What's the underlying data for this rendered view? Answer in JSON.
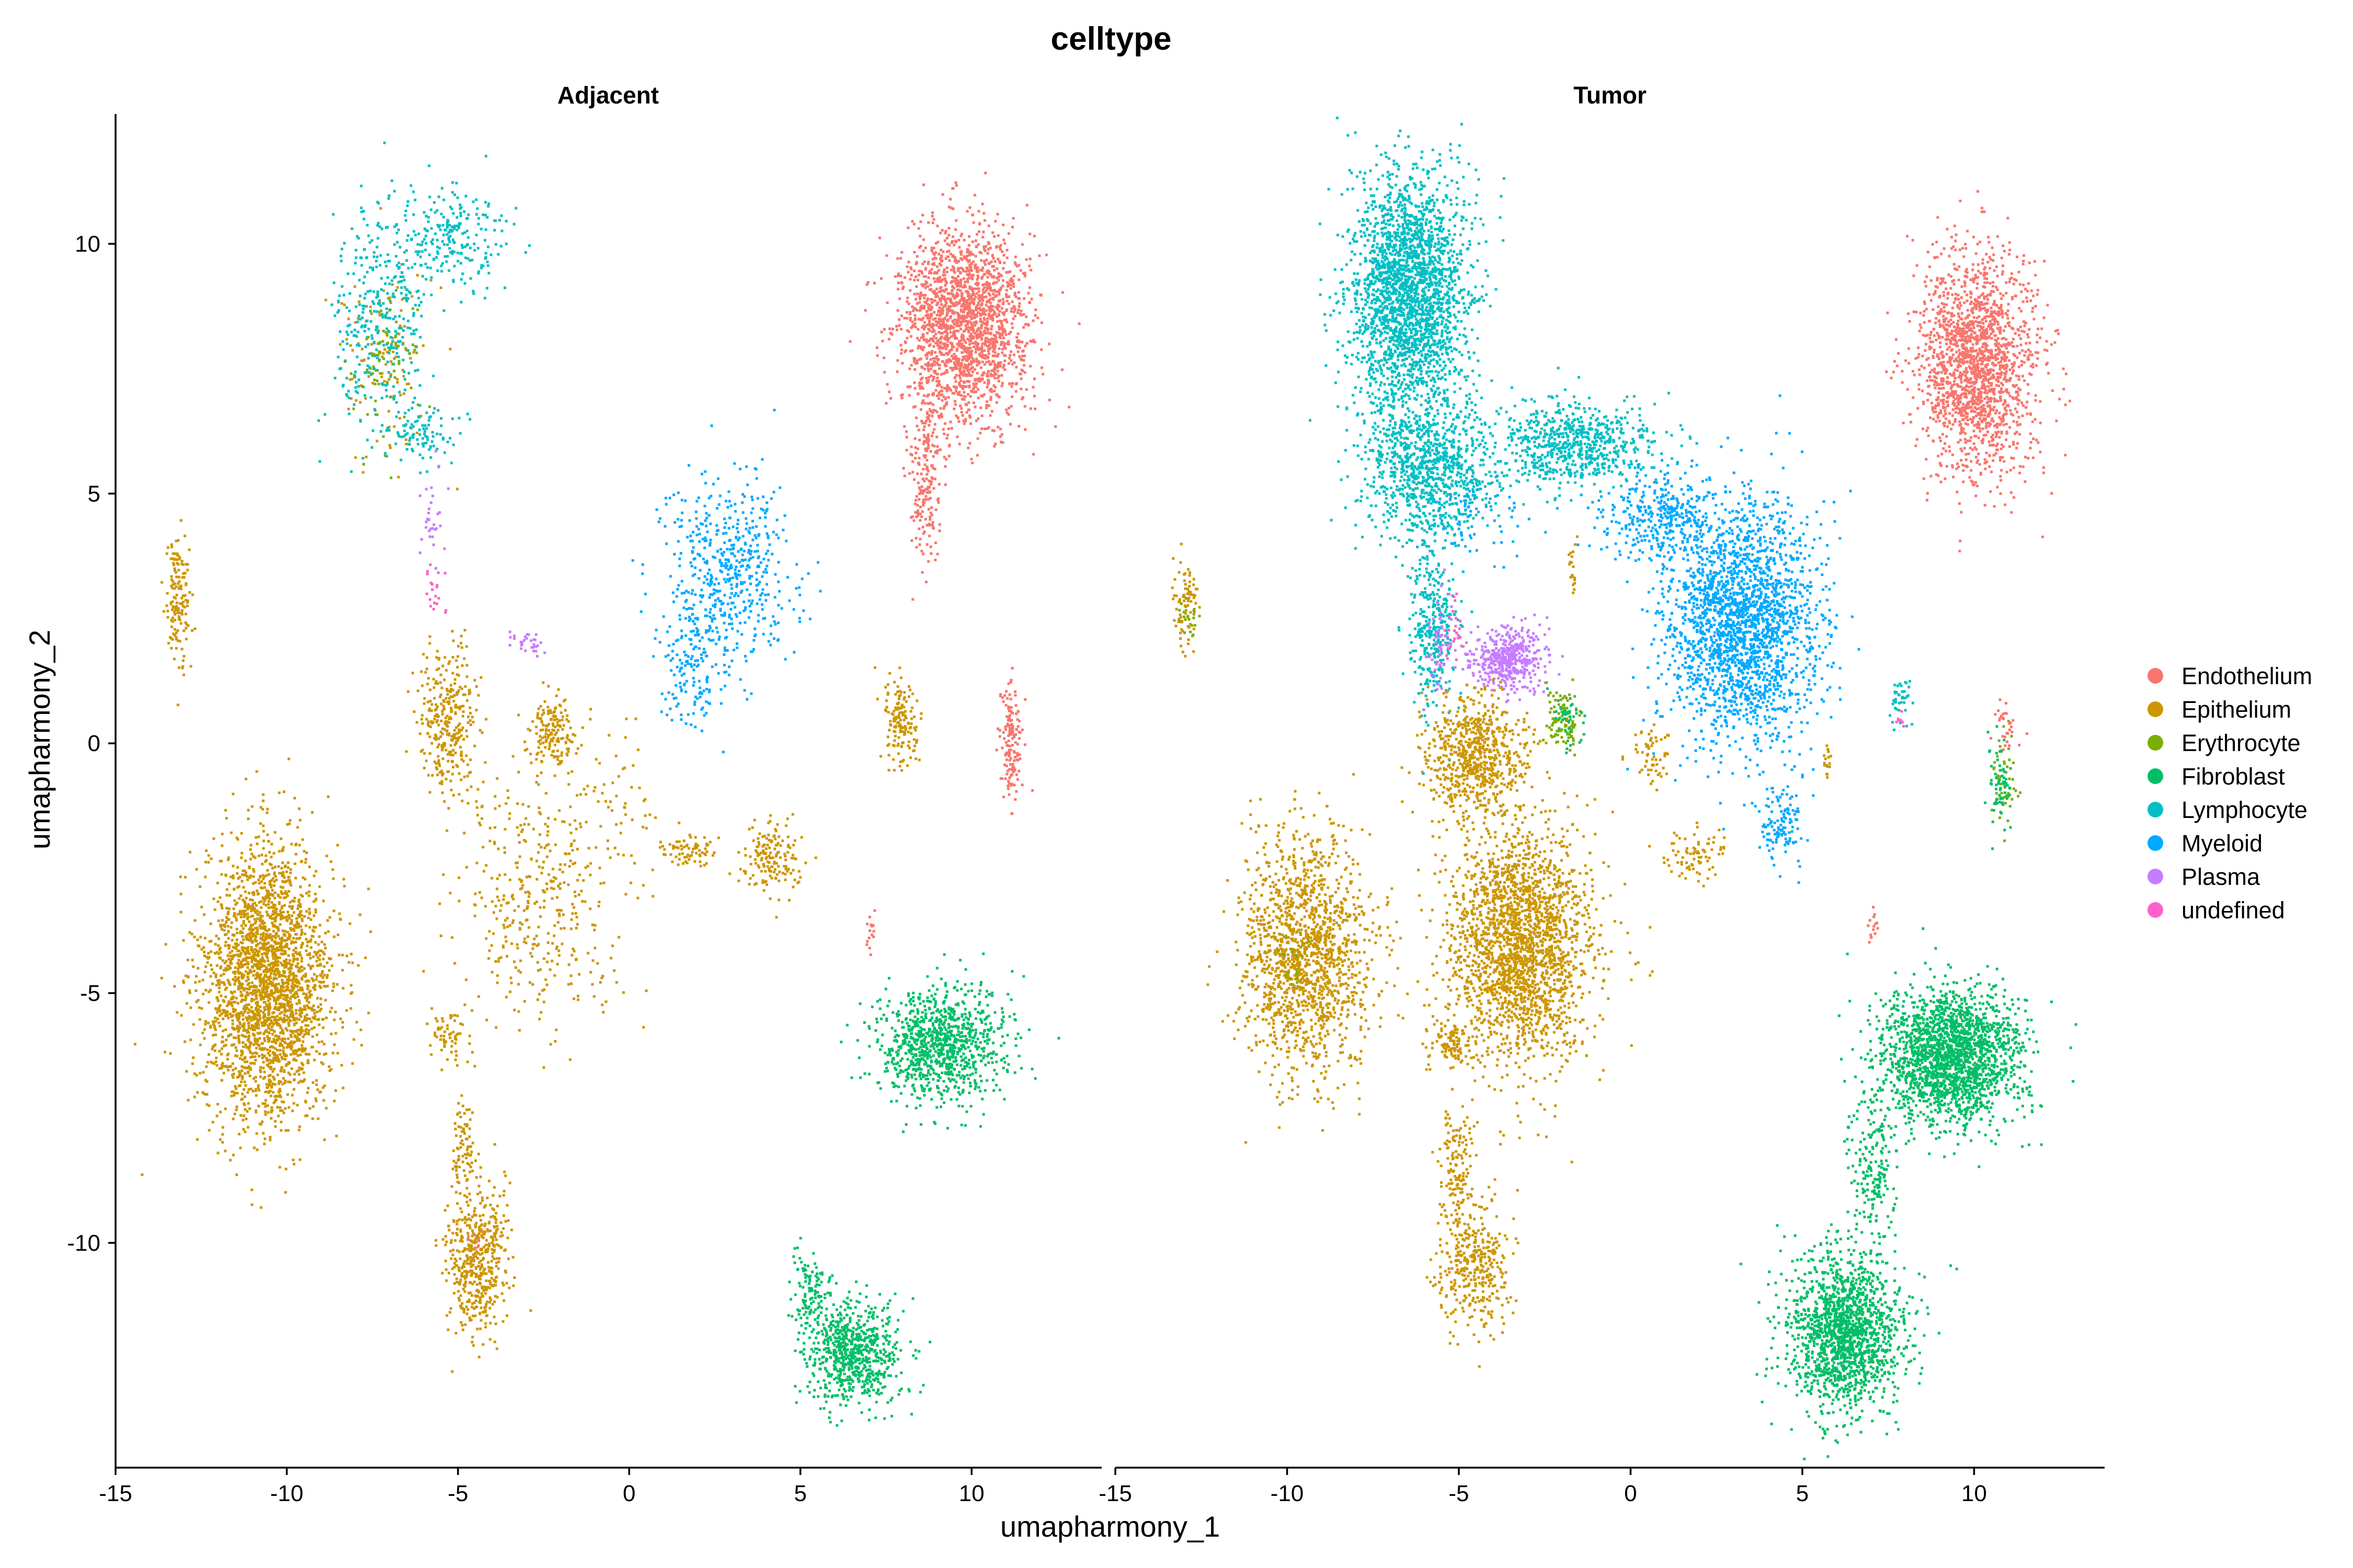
{
  "chart_data": {
    "type": "scatter",
    "title": "celltype",
    "xlabel": "umapharmony_1",
    "ylabel": "umapharmony_2",
    "xlim": [
      -15,
      13.8
    ],
    "ylim": [
      -14.5,
      12.6
    ],
    "x_ticks": [
      -15,
      -10,
      -5,
      0,
      5,
      10
    ],
    "y_ticks": [
      -10,
      -5,
      0,
      5,
      10
    ],
    "x_tick_labels": [
      "-15",
      "-10",
      "-5",
      "0",
      "5",
      "10"
    ],
    "y_tick_labels": [
      "-10",
      "-5",
      "0",
      "5",
      "10"
    ],
    "grid": false,
    "legend_position": "right",
    "categories": [
      "Endothelium",
      "Epithelium",
      "Erythrocyte",
      "Fibroblast",
      "Lymphocyte",
      "Myeloid",
      "Plasma",
      "undefined"
    ],
    "colors": {
      "Endothelium": "#F8766D",
      "Epithelium": "#CD9600",
      "Erythrocyte": "#7CAE00",
      "Fibroblast": "#00BE67",
      "Lymphocyte": "#00BFC4",
      "Myeloid": "#00A9FF",
      "Plasma": "#C77CFF",
      "undefined": "#FF61CC"
    },
    "panels": [
      {
        "name": "Adjacent",
        "clusters": [
          {
            "celltype": "Epithelium",
            "cx": -10.6,
            "cy": -4.8,
            "sx": 1.1,
            "sy": 1.6,
            "n": 2600
          },
          {
            "celltype": "Epithelium",
            "cx": -4.5,
            "cy": -10.3,
            "sx": 0.5,
            "sy": 0.9,
            "n": 500
          },
          {
            "celltype": "Epithelium",
            "cx": -4.9,
            "cy": -8.0,
            "sx": 0.2,
            "sy": 0.5,
            "n": 80
          },
          {
            "celltype": "Epithelium",
            "cx": -5.3,
            "cy": -5.8,
            "sx": 0.3,
            "sy": 0.3,
            "n": 60
          },
          {
            "celltype": "Epithelium",
            "cx": -5.3,
            "cy": 0.5,
            "sx": 0.5,
            "sy": 0.8,
            "n": 320
          },
          {
            "celltype": "Epithelium",
            "cx": -2.3,
            "cy": 0.3,
            "sx": 0.4,
            "sy": 0.4,
            "n": 160
          },
          {
            "celltype": "Epithelium",
            "cx": -2.6,
            "cy": -3.0,
            "sx": 1.5,
            "sy": 1.5,
            "n": 420
          },
          {
            "celltype": "Epithelium",
            "cx": 4.1,
            "cy": -2.3,
            "sx": 0.5,
            "sy": 0.4,
            "n": 160
          },
          {
            "celltype": "Epithelium",
            "cx": 1.7,
            "cy": -2.1,
            "sx": 0.5,
            "sy": 0.2,
            "n": 70
          },
          {
            "celltype": "Epithelium",
            "cx": 7.9,
            "cy": 0.5,
            "sx": 0.3,
            "sy": 0.5,
            "n": 150
          },
          {
            "celltype": "Epithelium",
            "cx": -13.2,
            "cy": 2.8,
            "sx": 0.2,
            "sy": 0.8,
            "n": 150
          },
          {
            "celltype": "Epithelium",
            "cx": -7.2,
            "cy": 7.8,
            "sx": 0.8,
            "sy": 1.2,
            "n": 120
          },
          {
            "celltype": "Epithelium",
            "cx": -0.2,
            "cy": -1.0,
            "sx": 0.6,
            "sy": 0.8,
            "n": 40
          },
          {
            "celltype": "Lymphocyte",
            "cx": -7.3,
            "cy": 8.5,
            "sx": 0.8,
            "sy": 1.4,
            "n": 360
          },
          {
            "celltype": "Lymphocyte",
            "cx": -5.2,
            "cy": 10.2,
            "sx": 0.9,
            "sy": 0.6,
            "n": 220
          },
          {
            "celltype": "Lymphocyte",
            "cx": -6.0,
            "cy": 6.2,
            "sx": 0.6,
            "sy": 0.4,
            "n": 90
          },
          {
            "celltype": "Myeloid",
            "cx": 2.8,
            "cy": 3.4,
            "sx": 1.1,
            "sy": 1.1,
            "n": 520
          },
          {
            "celltype": "Myeloid",
            "cx": 1.8,
            "cy": 1.5,
            "sx": 0.6,
            "sy": 0.7,
            "n": 140
          },
          {
            "celltype": "Endothelium",
            "cx": 9.7,
            "cy": 8.4,
            "sx": 1.1,
            "sy": 1.1,
            "n": 2000
          },
          {
            "celltype": "Endothelium",
            "cx": 8.6,
            "cy": 5.4,
            "sx": 0.3,
            "sy": 1.0,
            "n": 200
          },
          {
            "celltype": "Endothelium",
            "cx": 11.1,
            "cy": 0.0,
            "sx": 0.2,
            "sy": 0.7,
            "n": 150
          },
          {
            "celltype": "Endothelium",
            "cx": 7.0,
            "cy": -3.7,
            "sx": 0.1,
            "sy": 0.3,
            "n": 15
          },
          {
            "celltype": "Endothelium",
            "cx": -4.5,
            "cy": -10.0,
            "sx": 0.2,
            "sy": 0.2,
            "n": 10
          },
          {
            "celltype": "Fibroblast",
            "cx": 9.0,
            "cy": -6.0,
            "sx": 1.1,
            "sy": 0.7,
            "n": 950
          },
          {
            "celltype": "Fibroblast",
            "cx": 6.5,
            "cy": -12.2,
            "sx": 0.8,
            "sy": 0.6,
            "n": 700
          },
          {
            "celltype": "Fibroblast",
            "cx": 5.3,
            "cy": -11.0,
            "sx": 0.4,
            "sy": 0.5,
            "n": 120
          },
          {
            "celltype": "Erythrocyte",
            "cx": -7.0,
            "cy": 7.5,
            "sx": 0.6,
            "sy": 0.8,
            "n": 60
          },
          {
            "celltype": "Plasma",
            "cx": -3.0,
            "cy": 2.0,
            "sx": 0.3,
            "sy": 0.15,
            "n": 30
          },
          {
            "celltype": "Plasma",
            "cx": -5.8,
            "cy": 4.5,
            "sx": 0.2,
            "sy": 0.6,
            "n": 30
          },
          {
            "celltype": "undefined",
            "cx": -5.7,
            "cy": 3.0,
            "sx": 0.2,
            "sy": 0.4,
            "n": 20
          }
        ]
      },
      {
        "name": "Tumor",
        "clusters": [
          {
            "celltype": "Lymphocyte",
            "cx": -6.5,
            "cy": 9.0,
            "sx": 1.0,
            "sy": 1.4,
            "n": 2400
          },
          {
            "celltype": "Lymphocyte",
            "cx": -6.0,
            "cy": 5.5,
            "sx": 1.1,
            "sy": 0.8,
            "n": 900
          },
          {
            "celltype": "Lymphocyte",
            "cx": -1.8,
            "cy": 6.0,
            "sx": 1.4,
            "sy": 0.5,
            "n": 700
          },
          {
            "celltype": "Lymphocyte",
            "cx": -5.8,
            "cy": 2.4,
            "sx": 0.4,
            "sy": 1.1,
            "n": 350
          },
          {
            "celltype": "Lymphocyte",
            "cx": 7.8,
            "cy": 0.9,
            "sx": 0.2,
            "sy": 0.3,
            "n": 40
          },
          {
            "celltype": "Myeloid",
            "cx": 3.2,
            "cy": 2.4,
            "sx": 1.3,
            "sy": 1.4,
            "n": 2200
          },
          {
            "celltype": "Myeloid",
            "cx": 0.8,
            "cy": 4.6,
            "sx": 1.1,
            "sy": 0.5,
            "n": 350
          },
          {
            "celltype": "Myeloid",
            "cx": 4.4,
            "cy": -1.6,
            "sx": 0.4,
            "sy": 0.5,
            "n": 120
          },
          {
            "celltype": "Myeloid",
            "cx": -4.6,
            "cy": 4.5,
            "sx": 0.8,
            "sy": 0.6,
            "n": 60
          },
          {
            "celltype": "Plasma",
            "cx": -3.6,
            "cy": 1.7,
            "sx": 0.6,
            "sy": 0.35,
            "n": 450
          },
          {
            "celltype": "Plasma",
            "cx": -5.6,
            "cy": 2.0,
            "sx": 0.2,
            "sy": 0.6,
            "n": 60
          },
          {
            "celltype": "Epithelium",
            "cx": -3.2,
            "cy": -4.0,
            "sx": 1.2,
            "sy": 1.4,
            "n": 2200
          },
          {
            "celltype": "Epithelium",
            "cx": -4.6,
            "cy": -0.2,
            "sx": 0.8,
            "sy": 0.7,
            "n": 700
          },
          {
            "celltype": "Epithelium",
            "cx": -9.5,
            "cy": -4.2,
            "sx": 1.1,
            "sy": 1.4,
            "n": 1500
          },
          {
            "celltype": "Epithelium",
            "cx": -5.1,
            "cy": -8.5,
            "sx": 0.3,
            "sy": 0.9,
            "n": 150
          },
          {
            "celltype": "Epithelium",
            "cx": -4.6,
            "cy": -10.5,
            "sx": 0.6,
            "sy": 0.7,
            "n": 350
          },
          {
            "celltype": "Epithelium",
            "cx": -5.3,
            "cy": -6.0,
            "sx": 0.4,
            "sy": 0.3,
            "n": 100
          },
          {
            "celltype": "Epithelium",
            "cx": -13.0,
            "cy": 2.8,
            "sx": 0.2,
            "sy": 0.5,
            "n": 80
          },
          {
            "celltype": "Epithelium",
            "cx": 0.6,
            "cy": -0.2,
            "sx": 0.3,
            "sy": 0.4,
            "n": 60
          },
          {
            "celltype": "Epithelium",
            "cx": 1.8,
            "cy": -2.2,
            "sx": 0.6,
            "sy": 0.3,
            "n": 80
          },
          {
            "celltype": "Epithelium",
            "cx": 5.7,
            "cy": -0.3,
            "sx": 0.1,
            "sy": 0.2,
            "n": 15
          },
          {
            "celltype": "Epithelium",
            "cx": -1.7,
            "cy": 3.4,
            "sx": 0.1,
            "sy": 0.4,
            "n": 20
          },
          {
            "celltype": "Erythrocyte",
            "cx": -2.0,
            "cy": 0.5,
            "sx": 0.3,
            "sy": 0.4,
            "n": 100
          },
          {
            "celltype": "Erythrocyte",
            "cx": 10.8,
            "cy": -0.6,
            "sx": 0.2,
            "sy": 0.7,
            "n": 50
          },
          {
            "celltype": "Erythrocyte",
            "cx": -9.8,
            "cy": -4.4,
            "sx": 0.3,
            "sy": 0.3,
            "n": 20
          },
          {
            "celltype": "Erythrocyte",
            "cx": -12.9,
            "cy": 2.5,
            "sx": 0.2,
            "sy": 0.3,
            "n": 20
          },
          {
            "celltype": "Endothelium",
            "cx": 10.0,
            "cy": 7.6,
            "sx": 1.0,
            "sy": 1.3,
            "n": 1800
          },
          {
            "celltype": "Endothelium",
            "cx": 10.9,
            "cy": 0.4,
            "sx": 0.2,
            "sy": 0.3,
            "n": 30
          },
          {
            "celltype": "Endothelium",
            "cx": 7.0,
            "cy": -3.6,
            "sx": 0.1,
            "sy": 0.2,
            "n": 15
          },
          {
            "celltype": "Fibroblast",
            "cx": 9.3,
            "cy": -6.2,
            "sx": 1.2,
            "sy": 0.8,
            "n": 2000
          },
          {
            "celltype": "Fibroblast",
            "cx": 6.2,
            "cy": -11.8,
            "sx": 1.0,
            "sy": 0.9,
            "n": 1600
          },
          {
            "celltype": "Fibroblast",
            "cx": 7.0,
            "cy": -8.5,
            "sx": 0.4,
            "sy": 0.9,
            "n": 200
          },
          {
            "celltype": "Fibroblast",
            "cx": 10.7,
            "cy": -0.8,
            "sx": 0.2,
            "sy": 0.5,
            "n": 60
          },
          {
            "celltype": "Fibroblast",
            "cx": -1.9,
            "cy": 0.5,
            "sx": 0.3,
            "sy": 0.3,
            "n": 40
          },
          {
            "celltype": "undefined",
            "cx": -5.2,
            "cy": 2.2,
            "sx": 0.2,
            "sy": 0.3,
            "n": 25
          },
          {
            "celltype": "undefined",
            "cx": 7.8,
            "cy": 0.5,
            "sx": 0.1,
            "sy": 0.1,
            "n": 8
          }
        ]
      }
    ]
  }
}
